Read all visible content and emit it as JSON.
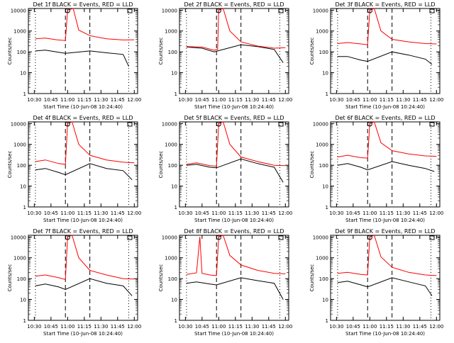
{
  "figure": {
    "ylabel": "Counts/sec",
    "xlabel": "Start Time (10-Jun-08 10:24:40)",
    "x_ticks": [
      "10:30",
      "10:45",
      "11:00",
      "11:15",
      "11:30",
      "11:45",
      "12:00"
    ],
    "y_ticks": [
      "1",
      "10",
      "100",
      "1000",
      "10000"
    ],
    "colors": {
      "events": "#000000",
      "lld": "#ff0000"
    }
  },
  "chart_data": [
    {
      "type": "line",
      "title": "Det 1f BLACK = Events, RED = LLD",
      "xlabel": "Start Time (10-Jun-08 10:24:40)",
      "ylabel": "Counts/sec",
      "yscale": "log",
      "ylim": [
        1,
        12000
      ],
      "xlim": [
        "10:24:40",
        "12:03"
      ],
      "series": [
        {
          "name": "Events",
          "color": "#000000",
          "x": [
            "10:31",
            "10:40",
            "10:50",
            "10:58",
            "11:20",
            "11:35",
            "11:50",
            "11:55"
          ],
          "values": [
            110,
            120,
            100,
            85,
            110,
            90,
            75,
            20
          ]
        },
        {
          "name": "LLD",
          "color": "#ff0000",
          "x": [
            "10:31",
            "10:40",
            "10:50",
            "10:58",
            "11:00",
            "11:05",
            "11:10",
            "11:20",
            "11:35",
            "11:50",
            "12:00"
          ],
          "values": [
            420,
            460,
            380,
            350,
            10000,
            12000,
            1100,
            600,
            420,
            370,
            380
          ]
        }
      ]
    },
    {
      "type": "line",
      "title": "Det 2f BLACK = Events, RED = LLD",
      "xlabel": "Start Time (10-Jun-08 10:24:40)",
      "ylabel": "Counts/sec",
      "yscale": "log",
      "ylim": [
        1,
        12000
      ],
      "xlim": [
        "10:24:40",
        "12:03"
      ],
      "series": [
        {
          "name": "Events",
          "color": "#000000",
          "x": [
            "10:31",
            "10:45",
            "10:56",
            "10:59",
            "11:20",
            "11:35",
            "11:50",
            "11:58"
          ],
          "values": [
            170,
            150,
            100,
            110,
            220,
            180,
            130,
            30
          ]
        },
        {
          "name": "LLD",
          "color": "#ff0000",
          "x": [
            "10:31",
            "10:45",
            "10:56",
            "10:59",
            "11:00",
            "11:04",
            "11:10",
            "11:20",
            "11:35",
            "11:50",
            "12:00"
          ],
          "values": [
            180,
            170,
            120,
            130,
            10000,
            12000,
            1000,
            300,
            190,
            150,
            160
          ]
        }
      ]
    },
    {
      "type": "line",
      "title": "Det 3f BLACK = Events, RED = LLD",
      "xlabel": "Start Time (10-Jun-08 10:24:40)",
      "ylabel": "Counts/sec",
      "yscale": "log",
      "ylim": [
        1,
        12000
      ],
      "xlim": [
        "10:24:40",
        "12:03"
      ],
      "series": [
        {
          "name": "Events",
          "color": "#000000",
          "x": [
            "10:31",
            "10:40",
            "10:52",
            "10:58",
            "11:20",
            "11:35",
            "11:50",
            "11:56"
          ],
          "values": [
            60,
            60,
            40,
            35,
            100,
            70,
            45,
            25
          ]
        },
        {
          "name": "LLD",
          "color": "#ff0000",
          "x": [
            "10:31",
            "10:40",
            "10:52",
            "10:58",
            "11:00",
            "11:04",
            "11:10",
            "11:20",
            "11:35",
            "11:50",
            "12:00"
          ],
          "values": [
            250,
            280,
            240,
            220,
            10000,
            12000,
            1000,
            400,
            300,
            250,
            240
          ]
        }
      ]
    },
    {
      "type": "line",
      "title": "Det 4f BLACK = Events, RED = LLD",
      "xlabel": "Start Time (10-Jun-08 10:24:40)",
      "ylabel": "Counts/sec",
      "yscale": "log",
      "ylim": [
        1,
        12000
      ],
      "xlim": [
        "10:24:40",
        "12:03"
      ],
      "series": [
        {
          "name": "Events",
          "color": "#000000",
          "x": [
            "10:31",
            "10:40",
            "10:52",
            "10:58",
            "11:20",
            "11:35",
            "11:50",
            "11:58"
          ],
          "values": [
            60,
            70,
            45,
            35,
            120,
            70,
            55,
            20
          ]
        },
        {
          "name": "LLD",
          "color": "#ff0000",
          "x": [
            "10:31",
            "10:40",
            "10:52",
            "10:58",
            "11:00",
            "11:04",
            "11:10",
            "11:20",
            "11:35",
            "11:50",
            "12:00"
          ],
          "values": [
            150,
            180,
            120,
            110,
            10000,
            12000,
            1000,
            300,
            180,
            140,
            130
          ]
        }
      ]
    },
    {
      "type": "line",
      "title": "Det 5f BLACK = Events, RED = LLD",
      "xlabel": "Start Time (10-Jun-08 10:24:40)",
      "ylabel": "Counts/sec",
      "yscale": "log",
      "ylim": [
        1,
        12000
      ],
      "xlim": [
        "10:24:40",
        "12:03"
      ],
      "series": [
        {
          "name": "Events",
          "color": "#000000",
          "x": [
            "10:31",
            "10:40",
            "10:52",
            "10:58",
            "11:20",
            "11:35",
            "11:50",
            "11:58"
          ],
          "values": [
            100,
            110,
            80,
            75,
            200,
            120,
            80,
            15
          ]
        },
        {
          "name": "LLD",
          "color": "#ff0000",
          "x": [
            "10:31",
            "10:40",
            "10:52",
            "10:58",
            "11:00",
            "11:04",
            "11:10",
            "11:20",
            "11:35",
            "11:50",
            "12:00"
          ],
          "values": [
            110,
            130,
            95,
            90,
            10000,
            12000,
            1000,
            250,
            150,
            100,
            95
          ]
        }
      ]
    },
    {
      "type": "line",
      "title": "Det 6f BLACK = Events, RED = LLD",
      "xlabel": "Start Time (10-Jun-08 10:24:40)",
      "ylabel": "Counts/sec",
      "yscale": "log",
      "ylim": [
        1,
        12000
      ],
      "xlim": [
        "10:24:40",
        "12:03"
      ],
      "series": [
        {
          "name": "Events",
          "color": "#000000",
          "x": [
            "10:31",
            "10:40",
            "10:52",
            "10:58",
            "11:20",
            "11:35",
            "11:50",
            "11:58"
          ],
          "values": [
            100,
            120,
            80,
            60,
            150,
            100,
            70,
            50
          ]
        },
        {
          "name": "LLD",
          "color": "#ff0000",
          "x": [
            "10:31",
            "10:40",
            "10:52",
            "10:58",
            "11:00",
            "11:04",
            "11:10",
            "11:20",
            "11:35",
            "11:50",
            "12:00"
          ],
          "values": [
            250,
            300,
            230,
            220,
            10000,
            12000,
            1200,
            500,
            350,
            280,
            270
          ]
        }
      ]
    },
    {
      "type": "line",
      "title": "Det 7f BLACK = Events, RED = LLD",
      "xlabel": "Start Time (10-Jun-08 10:24:40)",
      "ylabel": "Counts/sec",
      "yscale": "log",
      "ylim": [
        1,
        12000
      ],
      "xlim": [
        "10:24:40",
        "12:03"
      ],
      "series": [
        {
          "name": "Events",
          "color": "#000000",
          "x": [
            "10:31",
            "10:40",
            "10:52",
            "10:58",
            "11:20",
            "11:35",
            "11:50",
            "11:58"
          ],
          "values": [
            45,
            55,
            40,
            30,
            100,
            60,
            45,
            15
          ]
        },
        {
          "name": "LLD",
          "color": "#ff0000",
          "x": [
            "10:31",
            "10:40",
            "10:52",
            "10:58",
            "11:00",
            "11:04",
            "11:10",
            "11:20",
            "11:35",
            "11:50",
            "12:00"
          ],
          "values": [
            130,
            150,
            110,
            90,
            10000,
            12000,
            1000,
            250,
            150,
            100,
            95
          ]
        }
      ]
    },
    {
      "type": "line",
      "title": "Det 8f BLACK = Events, RED = LLD",
      "xlabel": "Start Time (10-Jun-08 10:24:40)",
      "ylabel": "Counts/sec",
      "yscale": "log",
      "ylim": [
        1,
        12000
      ],
      "xlim": [
        "10:24:40",
        "12:03"
      ],
      "series": [
        {
          "name": "Events",
          "color": "#000000",
          "x": [
            "10:31",
            "10:40",
            "10:52",
            "10:58",
            "11:20",
            "11:35",
            "11:50",
            "11:58"
          ],
          "values": [
            60,
            70,
            55,
            50,
            110,
            80,
            60,
            10
          ]
        },
        {
          "name": "LLD",
          "color": "#ff0000",
          "x": [
            "10:31",
            "10:40",
            "10:43",
            "10:45",
            "10:52",
            "10:58",
            "11:00",
            "11:04",
            "11:10",
            "11:20",
            "11:35",
            "11:50",
            "12:00"
          ],
          "values": [
            160,
            190,
            10000,
            180,
            150,
            140,
            10000,
            12000,
            1300,
            450,
            250,
            180,
            170
          ]
        }
      ]
    },
    {
      "type": "line",
      "title": "Det 9f BLACK = Events, RED = LLD",
      "xlabel": "Start Time (10-Jun-08 10:24:40)",
      "ylabel": "Counts/sec",
      "yscale": "log",
      "ylim": [
        1,
        12000
      ],
      "xlim": [
        "10:24:40",
        "12:03"
      ],
      "series": [
        {
          "name": "Events",
          "color": "#000000",
          "x": [
            "10:31",
            "10:40",
            "10:52",
            "10:58",
            "11:20",
            "11:35",
            "11:50",
            "11:56"
          ],
          "values": [
            65,
            75,
            50,
            40,
            110,
            70,
            45,
            15
          ]
        },
        {
          "name": "LLD",
          "color": "#ff0000",
          "x": [
            "10:31",
            "10:40",
            "10:52",
            "10:58",
            "11:00",
            "11:04",
            "11:10",
            "11:20",
            "11:35",
            "11:50",
            "12:00"
          ],
          "values": [
            180,
            200,
            160,
            150,
            10000,
            12000,
            1100,
            350,
            200,
            150,
            140
          ]
        }
      ]
    }
  ]
}
